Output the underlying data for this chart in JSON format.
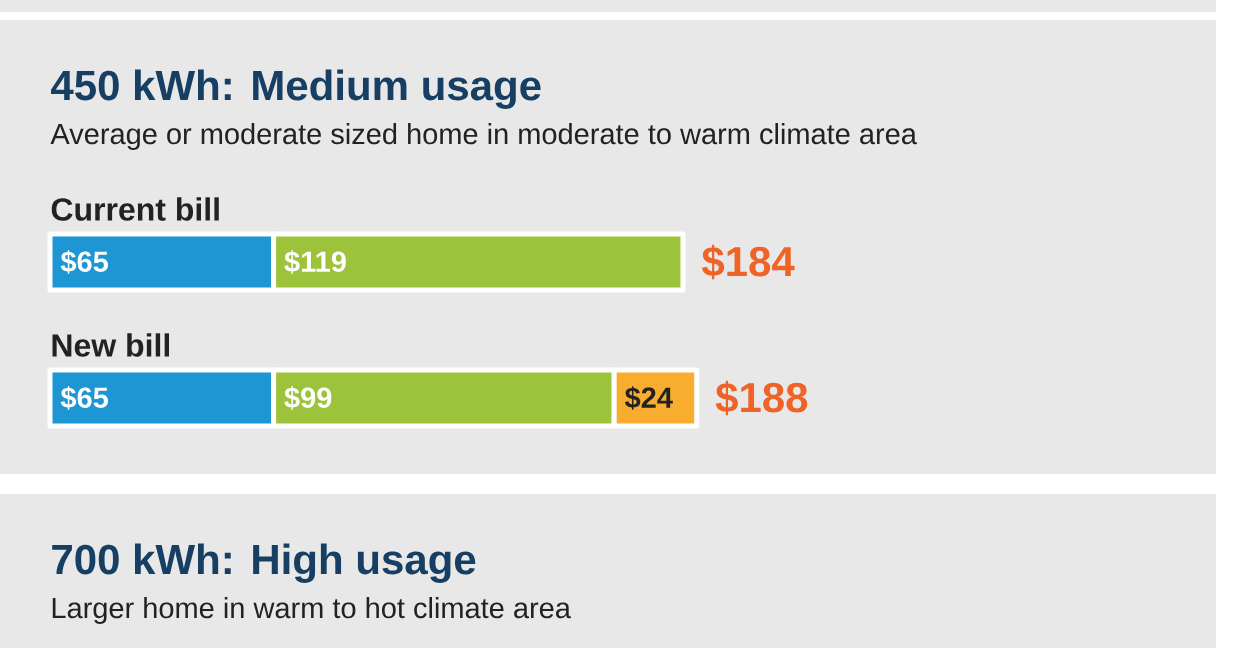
{
  "chart_data": [
    {
      "type": "bar",
      "orientation": "horizontal",
      "stacked": true,
      "title": "450 kWh: Medium usage",
      "subtitle": "Average or moderate sized home in moderate to warm climate area",
      "categories": [
        "Current bill",
        "New bill"
      ],
      "series": [
        {
          "color": "#1e96d3",
          "values": [
            65,
            65
          ],
          "value_labels": [
            "$65",
            "$65"
          ]
        },
        {
          "color": "#9dc33b",
          "values": [
            119,
            99
          ],
          "value_labels": [
            "$119",
            "$99"
          ]
        },
        {
          "color": "#f8ad2e",
          "values": [
            null,
            24
          ],
          "value_labels": [
            null,
            "$24"
          ]
        }
      ],
      "totals": [
        "$184",
        "$188"
      ]
    },
    {
      "type": "other",
      "title": "700 kWh: High usage",
      "subtitle": "Larger home in warm to hot climate area"
    }
  ]
}
